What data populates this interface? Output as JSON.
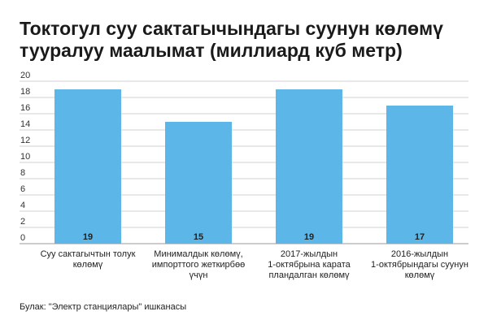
{
  "title": "Токтогул суу сактагычындагы суунун көлөмү тууралуу маалымат (миллиард куб метр)",
  "source": "Булак: \"Электр станциялары\" ишканасы",
  "chart_data": {
    "type": "bar",
    "categories": [
      [
        "Суу сактагычтын толук",
        "көлөмү"
      ],
      [
        "Минималдык көлөмү,",
        "импорттого жеткирбөө",
        "үчүн"
      ],
      [
        "2017-жылдын",
        "1-октябрына карата",
        "пландалган көлөмү"
      ],
      [
        "2016-жылдын",
        "1-октябрындагы суунун",
        "көлөмү"
      ]
    ],
    "values": [
      19,
      15,
      19,
      17
    ],
    "value_labels": [
      "19",
      "15",
      "19",
      "17"
    ],
    "ylim": [
      0,
      20
    ],
    "yticks": [
      0,
      2,
      4,
      6,
      8,
      10,
      12,
      14,
      16,
      18,
      20
    ],
    "grid": true,
    "bar_color": "#5cb6e8",
    "grid_color": "#d0d0d0"
  }
}
